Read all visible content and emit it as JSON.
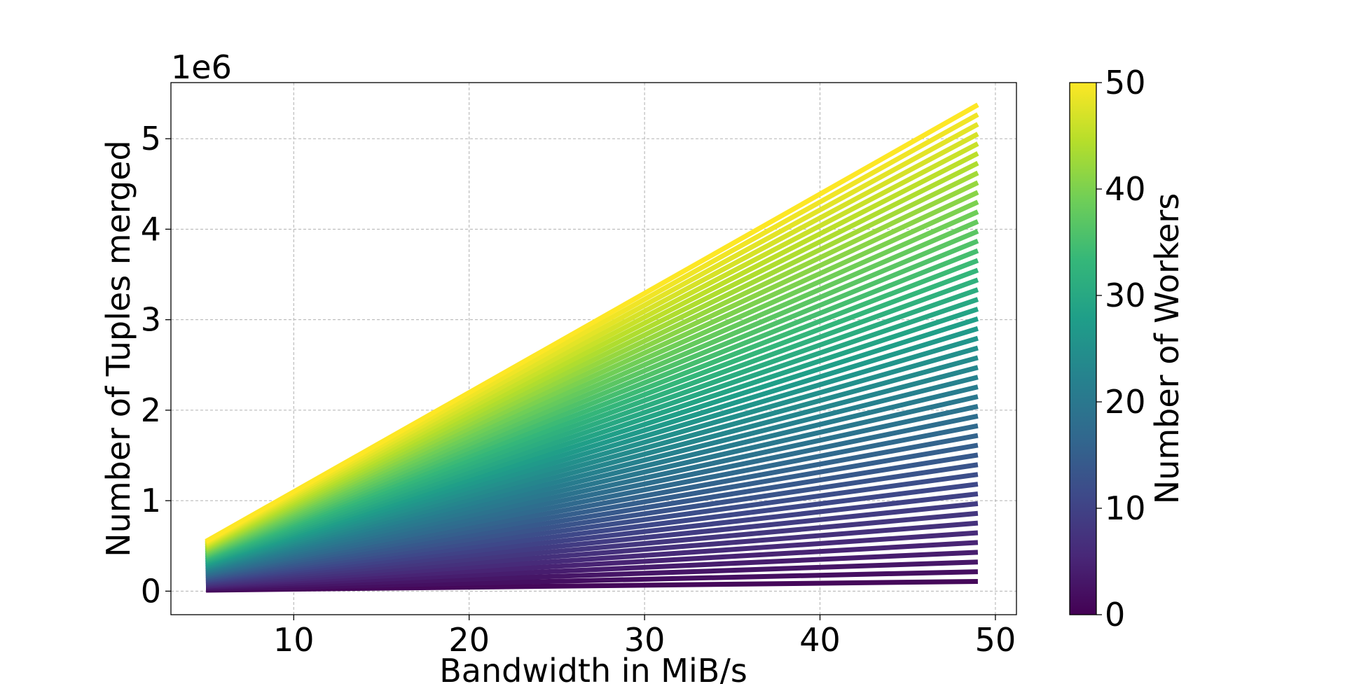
{
  "chart_data": {
    "type": "line",
    "title": "",
    "xlabel": "Bandwidth in MiB/s",
    "ylabel": "Number of Tuples merged",
    "y_offset_label": "1e6",
    "xlim": [
      3.0,
      51.2
    ],
    "ylim": [
      -0.26,
      5.62
    ],
    "x_ticks": [
      10,
      20,
      30,
      40,
      50
    ],
    "y_ticks": [
      0,
      1,
      2,
      3,
      4,
      5
    ],
    "grid": true,
    "x_start": 5,
    "x_end": 49,
    "workers_min": 1,
    "workers_max": 50,
    "y_per_worker_at_x_start": 0.011,
    "y_per_worker_at_x_end": 0.1075,
    "note_units": "y values in units of 1e6 tuples",
    "colorbar": {
      "label": "Number of Workers",
      "range": [
        0,
        50
      ],
      "ticks": [
        0,
        10,
        20,
        30,
        40,
        50
      ],
      "colormap": "viridis",
      "colors": [
        "#440154",
        "#482878",
        "#3e4989",
        "#31688e",
        "#26828e",
        "#1f9e89",
        "#35b779",
        "#6ece58",
        "#b5de2b",
        "#fde725"
      ]
    }
  }
}
